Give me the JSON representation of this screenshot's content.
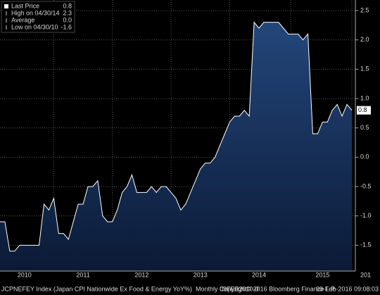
{
  "chart_data": {
    "type": "area",
    "categories": [
      null,
      null,
      null,
      null,
      null,
      "2010",
      null,
      null,
      null,
      null,
      null,
      null,
      null,
      null,
      null,
      null,
      null,
      "2011",
      null,
      null,
      null,
      null,
      null,
      null,
      null,
      null,
      null,
      null,
      null,
      "2012",
      null,
      null,
      null,
      null,
      null,
      null,
      null,
      null,
      null,
      null,
      null,
      "2013",
      null,
      null,
      null,
      null,
      null,
      null,
      null,
      null,
      null,
      null,
      null,
      "2014",
      null,
      null,
      null,
      null,
      null,
      null,
      null,
      null,
      null,
      null,
      null,
      null,
      "2015",
      null,
      null,
      null,
      null,
      null,
      null
    ],
    "series": [
      {
        "name": "Last Price",
        "color": "#ffffff",
        "values": [
          -1.1,
          -1.1,
          -1.6,
          -1.6,
          -1.5,
          -1.5,
          -1.5,
          -1.5,
          -1.5,
          -0.8,
          -0.9,
          -0.7,
          -1.3,
          -1.3,
          -1.4,
          -1.1,
          -0.8,
          -0.8,
          -0.5,
          -0.5,
          -0.4,
          -1.0,
          -1.1,
          -1.1,
          -0.9,
          -0.6,
          -0.5,
          -0.3,
          -0.6,
          -0.6,
          -0.6,
          -0.5,
          -0.6,
          -0.5,
          -0.5,
          -0.6,
          -0.7,
          -0.9,
          -0.8,
          -0.6,
          -0.4,
          -0.2,
          -0.1,
          -0.1,
          0.0,
          0.2,
          0.4,
          0.6,
          0.7,
          0.7,
          0.8,
          0.7,
          2.3,
          2.2,
          2.3,
          2.3,
          2.3,
          2.3,
          2.2,
          2.1,
          2.1,
          2.1,
          2.0,
          2.1,
          0.4,
          0.4,
          0.6,
          0.6,
          0.8,
          0.9,
          0.7,
          0.9,
          0.8
        ]
      }
    ],
    "ylim": [
      -1.94,
      2.68
    ],
    "yticks": [
      2.5,
      {
        "value": 2,
        "label": "2.0"
      },
      1.5,
      {
        "value": 1,
        "label": "1.0"
      },
      0.5,
      {
        "value": 0,
        "label": "0.0"
      },
      -0.5,
      {
        "value": -1,
        "label": "-1.0"
      },
      -1.5
    ],
    "grid": true,
    "legend": [
      {
        "label": "Last Price",
        "value": "0.8"
      },
      {
        "label": "High on 04/30/14",
        "value": "2.3"
      },
      {
        "label": "Average",
        "value": "0.0"
      },
      {
        "label": "Low on 04/30/10",
        "value": "-1.6"
      }
    ],
    "legend_position": "upper left",
    "footer_left": "JCPNEFEY Index (Japan CPI Nationwide Ex Food & Energy YoY%)  Monthly 09FEB2010-0",
    "footer_mid": "Copyright© 2016 Bloomberg Finance L.P.",
    "footer_right": "09-Feb-2016 09:08:03",
    "x_cut_label": "201"
  }
}
